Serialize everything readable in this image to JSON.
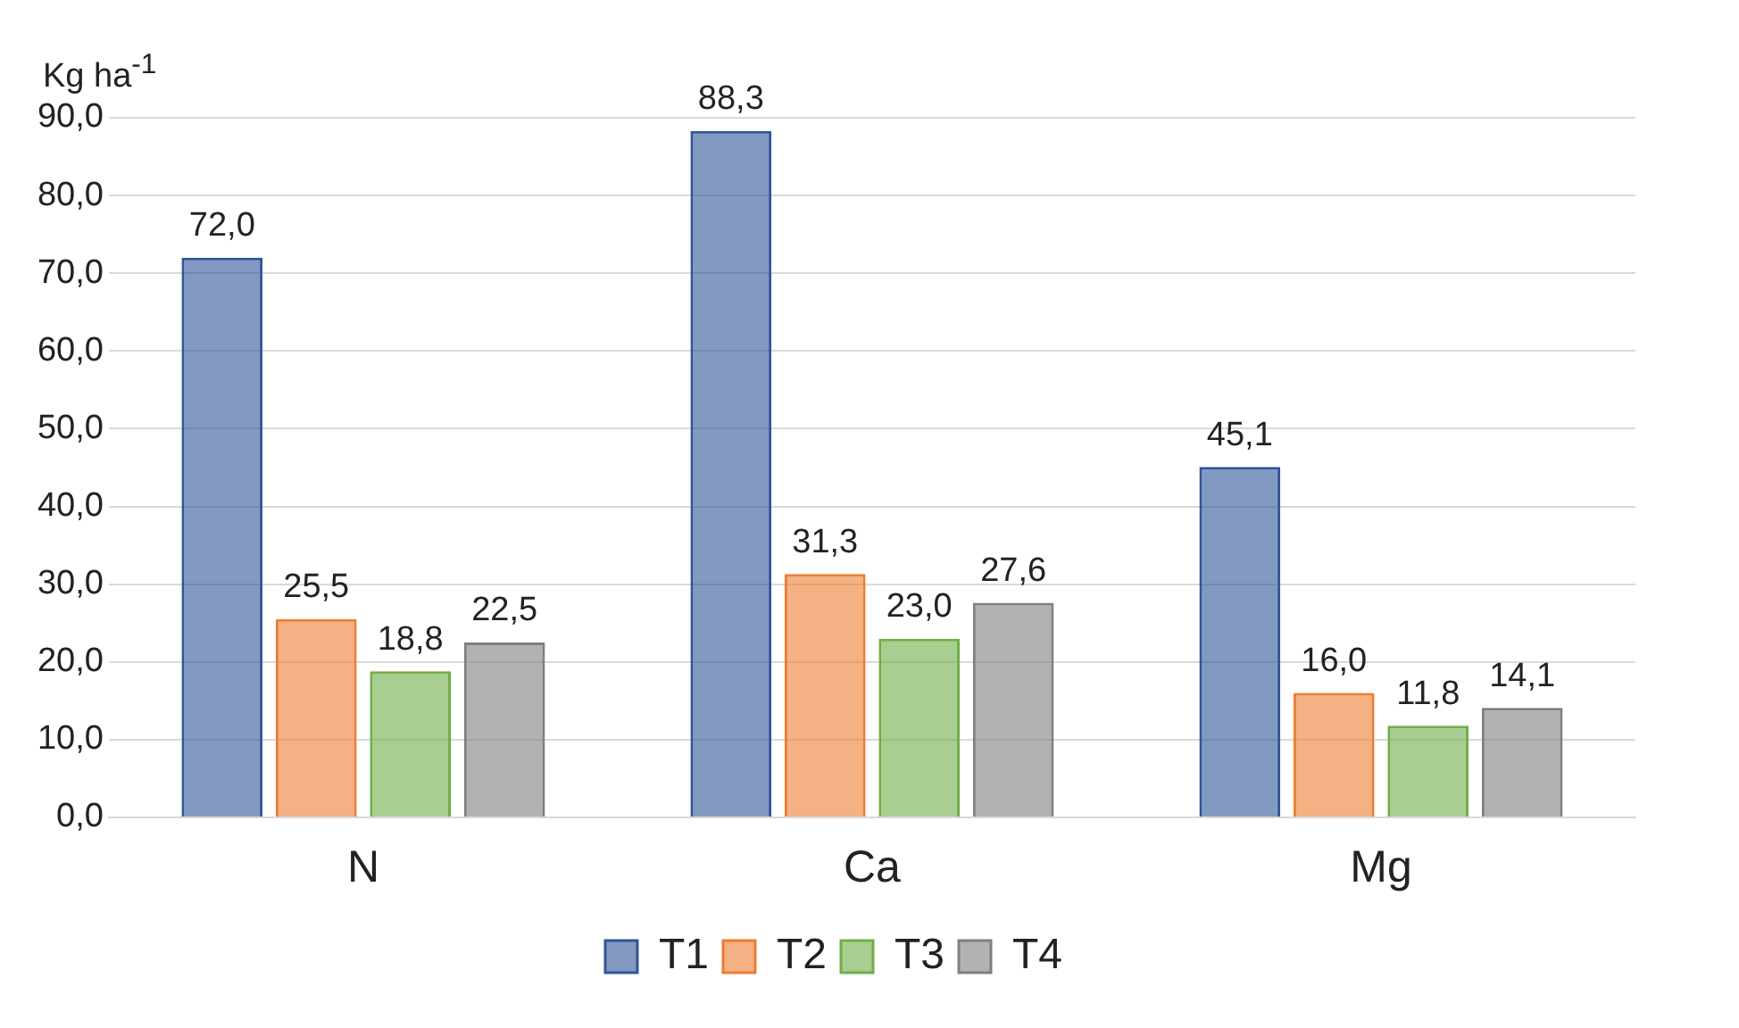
{
  "chart_data": {
    "type": "bar",
    "ylabel": "Kg ha$^{-1}$",
    "categories": [
      "N",
      "Ca",
      "Mg"
    ],
    "series": [
      {
        "name": "T1",
        "color": "#2f5597",
        "values": [
          72.0,
          88.3,
          45.1
        ],
        "value_labels": [
          "72,0",
          "88,3",
          "45,1"
        ]
      },
      {
        "name": "T2",
        "color": "#ed7d31",
        "values": [
          25.5,
          31.3,
          16.0
        ],
        "value_labels": [
          "25,5",
          "31,3",
          "16,0"
        ]
      },
      {
        "name": "T3",
        "color": "#70ad47",
        "values": [
          18.8,
          23.0,
          11.8
        ],
        "value_labels": [
          "18,8",
          "23,0",
          "11,8"
        ]
      },
      {
        "name": "T4",
        "color": "#7f7f7f",
        "values": [
          22.5,
          27.6,
          14.1
        ],
        "value_labels": [
          "22,5",
          "27,6",
          "14,1"
        ]
      }
    ],
    "ylim": [
      0,
      90
    ],
    "yticks": [
      {
        "value": 0,
        "label": "0,0"
      },
      {
        "value": 10,
        "label": "10,0"
      },
      {
        "value": 20,
        "label": "20,0"
      },
      {
        "value": 30,
        "label": "30,0"
      },
      {
        "value": 40,
        "label": "40,0"
      },
      {
        "value": 50,
        "label": "50,0"
      },
      {
        "value": 60,
        "label": "60,0"
      },
      {
        "value": 70,
        "label": "70,0"
      },
      {
        "value": 80,
        "label": "80,0"
      },
      {
        "value": 90,
        "label": "90,0"
      }
    ],
    "grid": "y",
    "legend": "bottom"
  }
}
